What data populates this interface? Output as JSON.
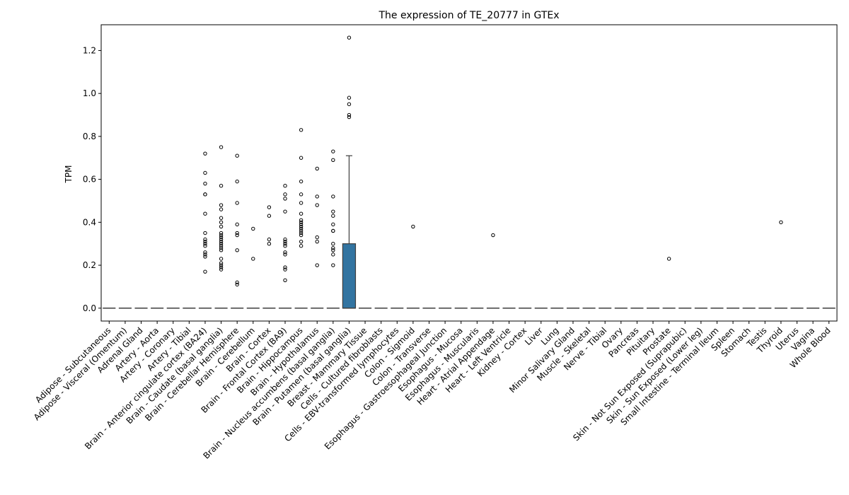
{
  "chart_data": {
    "type": "box",
    "title": "The expression of TE_20777 in GTEx",
    "xlabel": "",
    "ylabel": "TPM",
    "ylim": [
      -0.06,
      1.32
    ],
    "yticks": [
      "0.0",
      "0.2",
      "0.4",
      "0.6",
      "0.8",
      "1.0",
      "1.2"
    ],
    "grid": false,
    "legend": "none",
    "box_color": "#3274a1",
    "categories": [
      "Adipose - Subcutaneous",
      "Adipose - Visceral (Omentum)",
      "Adrenal Gland",
      "Artery - Aorta",
      "Artery - Coronary",
      "Artery - Tibial",
      "Brain - Anterior cingulate cortex (BA24)",
      "Brain - Caudate (basal ganglia)",
      "Brain - Cerebellar Hemisphere",
      "Brain - Cerebellum",
      "Brain - Cortex",
      "Brain - Frontal Cortex (BA9)",
      "Brain - Hippocampus",
      "Brain - Hypothalamus",
      "Brain - Nucleus accumbens (basal ganglia)",
      "Brain - Putamen (basal ganglia)",
      "Breast - Mammary Tissue",
      "Cells - Cultured fibroblasts",
      "Cells - EBV-transformed lymphocytes",
      "Colon - Sigmoid",
      "Colon - Transverse",
      "Esophagus - Gastroesophageal Junction",
      "Esophagus - Mucosa",
      "Esophagus - Muscularis",
      "Heart - Atrial Appendage",
      "Heart - Left Ventricle",
      "Kidney - Cortex",
      "Liver",
      "Lung",
      "Minor Salivary Gland",
      "Muscle - Skeletal",
      "Nerve - Tibial",
      "Ovary",
      "Pancreas",
      "Pituitary",
      "Prostate",
      "Skin - Not Sun Exposed (Suprapubic)",
      "Skin - Sun Exposed (Lower leg)",
      "Small Intestine - Terminal Ileum",
      "Spleen",
      "Stomach",
      "Testis",
      "Thyroid",
      "Uterus",
      "Vagina",
      "Whole Blood"
    ],
    "boxes": [
      {
        "q1": 0,
        "median": 0,
        "q3": 0,
        "whisker_low": 0,
        "whisker_high": 0,
        "outliers": []
      },
      {
        "q1": 0,
        "median": 0,
        "q3": 0,
        "whisker_low": 0,
        "whisker_high": 0,
        "outliers": []
      },
      {
        "q1": 0,
        "median": 0,
        "q3": 0,
        "whisker_low": 0,
        "whisker_high": 0,
        "outliers": []
      },
      {
        "q1": 0,
        "median": 0,
        "q3": 0,
        "whisker_low": 0,
        "whisker_high": 0,
        "outliers": []
      },
      {
        "q1": 0,
        "median": 0,
        "q3": 0,
        "whisker_low": 0,
        "whisker_high": 0,
        "outliers": []
      },
      {
        "q1": 0,
        "median": 0,
        "q3": 0,
        "whisker_low": 0,
        "whisker_high": 0,
        "outliers": []
      },
      {
        "q1": 0,
        "median": 0,
        "q3": 0,
        "whisker_low": 0,
        "whisker_high": 0,
        "outliers": [
          0.17,
          0.24,
          0.25,
          0.26,
          0.29,
          0.3,
          0.31,
          0.32,
          0.35,
          0.44,
          0.53,
          0.53,
          0.58,
          0.63,
          0.72
        ]
      },
      {
        "q1": 0,
        "median": 0,
        "q3": 0,
        "whisker_low": 0,
        "whisker_high": 0,
        "outliers": [
          0.18,
          0.19,
          0.2,
          0.21,
          0.23,
          0.27,
          0.28,
          0.29,
          0.3,
          0.31,
          0.32,
          0.33,
          0.34,
          0.35,
          0.38,
          0.4,
          0.42,
          0.46,
          0.48,
          0.57,
          0.75
        ]
      },
      {
        "q1": 0,
        "median": 0,
        "q3": 0,
        "whisker_low": 0,
        "whisker_high": 0,
        "outliers": [
          0.11,
          0.12,
          0.27,
          0.34,
          0.35,
          0.39,
          0.49,
          0.59,
          0.71
        ]
      },
      {
        "q1": 0,
        "median": 0,
        "q3": 0,
        "whisker_low": 0,
        "whisker_high": 0,
        "outliers": [
          0.23,
          0.37
        ]
      },
      {
        "q1": 0,
        "median": 0,
        "q3": 0,
        "whisker_low": 0,
        "whisker_high": 0,
        "outliers": [
          0.3,
          0.32,
          0.43,
          0.47
        ]
      },
      {
        "q1": 0,
        "median": 0,
        "q3": 0,
        "whisker_low": 0,
        "whisker_high": 0,
        "outliers": [
          0.13,
          0.18,
          0.19,
          0.25,
          0.26,
          0.29,
          0.3,
          0.31,
          0.32,
          0.45,
          0.51,
          0.53,
          0.57
        ]
      },
      {
        "q1": 0,
        "median": 0,
        "q3": 0,
        "whisker_low": 0,
        "whisker_high": 0,
        "outliers": [
          0.29,
          0.31,
          0.34,
          0.35,
          0.36,
          0.37,
          0.38,
          0.39,
          0.4,
          0.41,
          0.44,
          0.49,
          0.53,
          0.59,
          0.7,
          0.83
        ]
      },
      {
        "q1": 0,
        "median": 0,
        "q3": 0,
        "whisker_low": 0,
        "whisker_high": 0,
        "outliers": [
          0.2,
          0.31,
          0.33,
          0.48,
          0.52,
          0.65
        ]
      },
      {
        "q1": 0,
        "median": 0,
        "q3": 0,
        "whisker_low": 0,
        "whisker_high": 0,
        "outliers": [
          0.2,
          0.25,
          0.27,
          0.28,
          0.3,
          0.36,
          0.36,
          0.39,
          0.43,
          0.45,
          0.52,
          0.69,
          0.73
        ]
      },
      {
        "q1": 0,
        "median": 0,
        "q3": 0.3,
        "whisker_low": 0,
        "whisker_high": 0.71,
        "outliers": [
          0.89,
          0.9,
          0.95,
          0.98,
          1.26
        ]
      },
      {
        "q1": 0,
        "median": 0,
        "q3": 0,
        "whisker_low": 0,
        "whisker_high": 0,
        "outliers": []
      },
      {
        "q1": 0,
        "median": 0,
        "q3": 0,
        "whisker_low": 0,
        "whisker_high": 0,
        "outliers": []
      },
      {
        "q1": 0,
        "median": 0,
        "q3": 0,
        "whisker_low": 0,
        "whisker_high": 0,
        "outliers": []
      },
      {
        "q1": 0,
        "median": 0,
        "q3": 0,
        "whisker_low": 0,
        "whisker_high": 0,
        "outliers": [
          0.38
        ]
      },
      {
        "q1": 0,
        "median": 0,
        "q3": 0,
        "whisker_low": 0,
        "whisker_high": 0,
        "outliers": []
      },
      {
        "q1": 0,
        "median": 0,
        "q3": 0,
        "whisker_low": 0,
        "whisker_high": 0,
        "outliers": []
      },
      {
        "q1": 0,
        "median": 0,
        "q3": 0,
        "whisker_low": 0,
        "whisker_high": 0,
        "outliers": []
      },
      {
        "q1": 0,
        "median": 0,
        "q3": 0,
        "whisker_low": 0,
        "whisker_high": 0,
        "outliers": []
      },
      {
        "q1": 0,
        "median": 0,
        "q3": 0,
        "whisker_low": 0,
        "whisker_high": 0,
        "outliers": [
          0.34
        ]
      },
      {
        "q1": 0,
        "median": 0,
        "q3": 0,
        "whisker_low": 0,
        "whisker_high": 0,
        "outliers": []
      },
      {
        "q1": 0,
        "median": 0,
        "q3": 0,
        "whisker_low": 0,
        "whisker_high": 0,
        "outliers": []
      },
      {
        "q1": 0,
        "median": 0,
        "q3": 0,
        "whisker_low": 0,
        "whisker_high": 0,
        "outliers": []
      },
      {
        "q1": 0,
        "median": 0,
        "q3": 0,
        "whisker_low": 0,
        "whisker_high": 0,
        "outliers": []
      },
      {
        "q1": 0,
        "median": 0,
        "q3": 0,
        "whisker_low": 0,
        "whisker_high": 0,
        "outliers": []
      },
      {
        "q1": 0,
        "median": 0,
        "q3": 0,
        "whisker_low": 0,
        "whisker_high": 0,
        "outliers": []
      },
      {
        "q1": 0,
        "median": 0,
        "q3": 0,
        "whisker_low": 0,
        "whisker_high": 0,
        "outliers": []
      },
      {
        "q1": 0,
        "median": 0,
        "q3": 0,
        "whisker_low": 0,
        "whisker_high": 0,
        "outliers": []
      },
      {
        "q1": 0,
        "median": 0,
        "q3": 0,
        "whisker_low": 0,
        "whisker_high": 0,
        "outliers": []
      },
      {
        "q1": 0,
        "median": 0,
        "q3": 0,
        "whisker_low": 0,
        "whisker_high": 0,
        "outliers": []
      },
      {
        "q1": 0,
        "median": 0,
        "q3": 0,
        "whisker_low": 0,
        "whisker_high": 0,
        "outliers": [
          0.23
        ]
      },
      {
        "q1": 0,
        "median": 0,
        "q3": 0,
        "whisker_low": 0,
        "whisker_high": 0,
        "outliers": []
      },
      {
        "q1": 0,
        "median": 0,
        "q3": 0,
        "whisker_low": 0,
        "whisker_high": 0,
        "outliers": []
      },
      {
        "q1": 0,
        "median": 0,
        "q3": 0,
        "whisker_low": 0,
        "whisker_high": 0,
        "outliers": []
      },
      {
        "q1": 0,
        "median": 0,
        "q3": 0,
        "whisker_low": 0,
        "whisker_high": 0,
        "outliers": []
      },
      {
        "q1": 0,
        "median": 0,
        "q3": 0,
        "whisker_low": 0,
        "whisker_high": 0,
        "outliers": []
      },
      {
        "q1": 0,
        "median": 0,
        "q3": 0,
        "whisker_low": 0,
        "whisker_high": 0,
        "outliers": []
      },
      {
        "q1": 0,
        "median": 0,
        "q3": 0,
        "whisker_low": 0,
        "whisker_high": 0,
        "outliers": [
          0.4
        ]
      },
      {
        "q1": 0,
        "median": 0,
        "q3": 0,
        "whisker_low": 0,
        "whisker_high": 0,
        "outliers": []
      },
      {
        "q1": 0,
        "median": 0,
        "q3": 0,
        "whisker_low": 0,
        "whisker_high": 0,
        "outliers": []
      },
      {
        "q1": 0,
        "median": 0,
        "q3": 0,
        "whisker_low": 0,
        "whisker_high": 0,
        "outliers": []
      }
    ]
  }
}
